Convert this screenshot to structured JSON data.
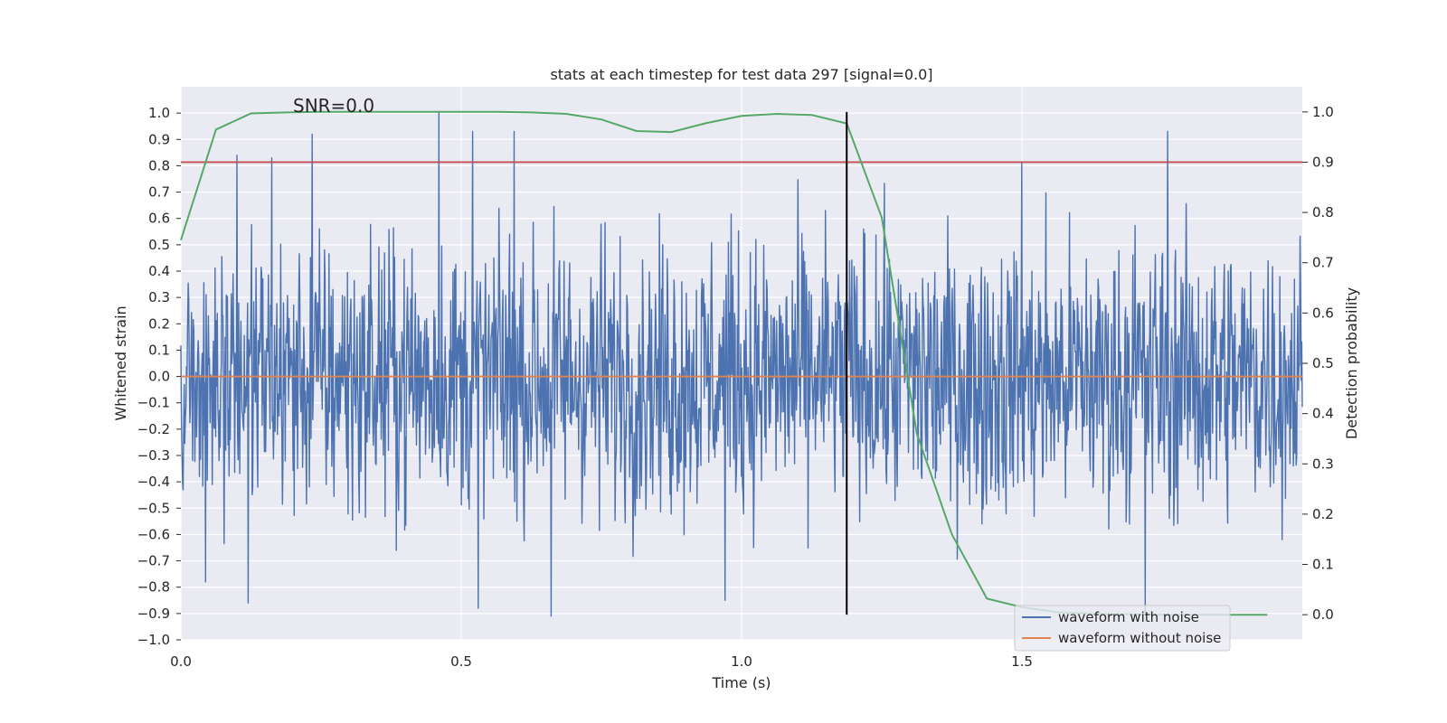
{
  "chart_data": {
    "type": "line",
    "title": "stats at each timestep for test data 297 [signal=0.0]",
    "xlabel": "Time (s)",
    "ylabel": "Whitened strain",
    "y2label": "Detection probability",
    "xlim": [
      0.0,
      2.0
    ],
    "ylim": [
      -1.0,
      1.1
    ],
    "y2lim": [
      -0.05,
      1.05
    ],
    "x_ticks": [
      0.0,
      0.5,
      1.0,
      1.5
    ],
    "x_tick_labels": [
      "0.0",
      "0.5",
      "1.0",
      "1.5"
    ],
    "y_ticks": [
      1.0,
      0.9,
      0.8,
      0.7,
      0.6,
      0.5,
      0.4,
      0.3,
      0.2,
      0.1,
      0.0,
      -0.1,
      -0.2,
      -0.3,
      -0.4,
      -0.5,
      -0.6,
      -0.7,
      -0.8,
      -0.9,
      -1.0
    ],
    "y_tick_labels": [
      "1.0",
      "0.9",
      "0.8",
      "0.7",
      "0.6",
      "0.5",
      "0.4",
      "0.3",
      "0.2",
      "0.1",
      "0.0",
      "−0.1",
      "−0.2",
      "−0.3",
      "−0.4",
      "−0.5",
      "−0.6",
      "−0.7",
      "−0.8",
      "−0.9",
      "−1.0"
    ],
    "y2_ticks": [
      1.0,
      0.9,
      0.8,
      0.7,
      0.6,
      0.5,
      0.4,
      0.3,
      0.2,
      0.1,
      0.0
    ],
    "y2_tick_labels": [
      "1.0",
      "0.9",
      "0.8",
      "0.7",
      "0.6",
      "0.5",
      "0.4",
      "0.3",
      "0.2",
      "0.1",
      "0.0"
    ],
    "grid": true,
    "annotation": "SNR=0.0",
    "series": [
      {
        "name": "waveform with noise",
        "color": "#4c72b0",
        "axis": "left",
        "kind": "noise",
        "x_range": [
          0.0,
          2.0
        ],
        "typical_range": [
          -0.6,
          0.6
        ],
        "peak_values": [
          {
            "x": 0.1,
            "y": 0.84
          },
          {
            "x": 0.162,
            "y": 0.83
          },
          {
            "x": 0.234,
            "y": 0.92
          },
          {
            "x": 0.46,
            "y": 1.0
          },
          {
            "x": 0.52,
            "y": 0.93
          },
          {
            "x": 0.594,
            "y": 0.93
          },
          {
            "x": 1.5,
            "y": 0.81
          },
          {
            "x": 1.76,
            "y": 0.93
          },
          {
            "x": 0.044,
            "y": -0.78
          },
          {
            "x": 0.12,
            "y": -0.86
          },
          {
            "x": 0.53,
            "y": -0.88
          },
          {
            "x": 0.66,
            "y": -0.91
          },
          {
            "x": 0.97,
            "y": -0.85
          },
          {
            "x": 1.72,
            "y": -0.9
          }
        ]
      },
      {
        "name": "waveform without noise",
        "color": "#dd8452",
        "axis": "left",
        "kind": "line",
        "x": [
          0.0,
          2.0
        ],
        "y": [
          0.0,
          0.0
        ]
      },
      {
        "name": "detection probability",
        "color": "#55a868",
        "axis": "right",
        "kind": "line",
        "x": [
          0.0,
          0.0625,
          0.125,
          0.1875,
          0.25,
          0.3125,
          0.375,
          0.4375,
          0.5,
          0.5625,
          0.625,
          0.6875,
          0.75,
          0.8125,
          0.875,
          0.9375,
          1.0,
          1.0625,
          1.125,
          1.1875,
          1.25,
          1.3125,
          1.375,
          1.4375,
          1.5,
          1.5625,
          1.625,
          1.6875,
          1.75,
          1.8125,
          1.875,
          1.9375
        ],
        "y": [
          0.745,
          0.965,
          0.997,
          0.999,
          1.0,
          1.0,
          1.0,
          1.0,
          1.0,
          1.0,
          0.999,
          0.996,
          0.985,
          0.962,
          0.96,
          0.978,
          0.992,
          0.996,
          0.994,
          0.977,
          0.79,
          0.36,
          0.16,
          0.032,
          0.015,
          0.005,
          0.002,
          0.001,
          0.0,
          0.0,
          0.0,
          0.0
        ]
      }
    ],
    "threshold": {
      "value": 0.9,
      "axis": "right",
      "color": "#c44e52"
    },
    "vline": {
      "x": 1.1875,
      "y2_range": [
        0.0,
        1.0
      ],
      "color": "#000000"
    },
    "legend": {
      "placement": "lower-right",
      "entries": [
        {
          "label": "waveform with noise",
          "color": "#4c72b0"
        },
        {
          "label": "waveform without noise",
          "color": "#dd8452"
        }
      ]
    },
    "colors": {
      "plot_bg": "#eaeaf2",
      "grid": "#ffffff",
      "text": "#262626"
    }
  }
}
